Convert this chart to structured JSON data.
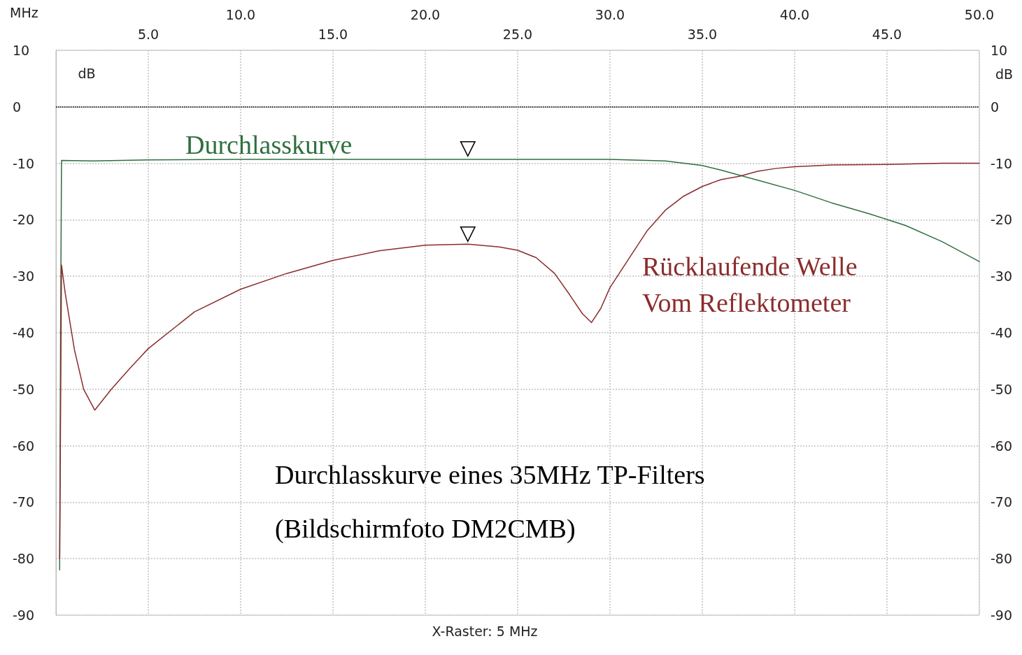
{
  "chart_data": {
    "type": "line",
    "xlabel": "MHz",
    "ylabel": "dB",
    "y2label": "dB",
    "xlim": [
      0,
      50
    ],
    "xticks": [
      {
        "value": 5,
        "label": "5.0"
      },
      {
        "value": 15,
        "label": "15.0"
      },
      {
        "value": 25,
        "label": "25.0"
      },
      {
        "value": 35,
        "label": "35.0"
      },
      {
        "value": 45,
        "label": "45.0"
      }
    ],
    "x2lim": [
      0,
      50
    ],
    "x2ticks": [
      {
        "value": 10,
        "label": "10.0"
      },
      {
        "value": 20,
        "label": "20.0"
      },
      {
        "value": 30,
        "label": "30.0"
      },
      {
        "value": 40,
        "label": "40.0"
      },
      {
        "value": 50,
        "label": "50.0"
      }
    ],
    "ylim": [
      -90,
      10
    ],
    "yticks": [
      10,
      0,
      -10,
      -20,
      -30,
      -40,
      -50,
      -60,
      -70,
      -80,
      -90
    ],
    "y2lim": [
      -90,
      10
    ],
    "y2ticks": [
      10,
      0,
      -10,
      -20,
      -30,
      -40,
      -50,
      -60,
      -70,
      -80,
      -90
    ],
    "grid": true,
    "legend": false,
    "marker": "none",
    "line_style": "solid",
    "ref_lines": [
      {
        "axis": "y",
        "value": 0,
        "label": null,
        "color": "#000000",
        "line_style": "dotted"
      }
    ],
    "series": [
      {
        "name": "Durchlasskurve",
        "color": "#2f6f3f",
        "x": [
          0.2,
          0.25,
          0.3,
          2,
          5,
          10,
          15,
          20,
          22.3,
          25,
          30,
          33,
          35,
          36,
          38,
          40,
          42,
          44,
          46,
          48,
          50
        ],
        "values": [
          -82,
          -40,
          -9.5,
          -9.6,
          -9.4,
          -9.3,
          -9.3,
          -9.3,
          -9.3,
          -9.3,
          -9.3,
          -9.6,
          -10.4,
          -11.2,
          -13,
          -14.8,
          -17,
          -18.9,
          -21,
          -23.9,
          -27.4
        ]
      },
      {
        "name": "Rücklaufende Welle Vom Reflektometer",
        "color": "#8b2c2c",
        "x": [
          0.2,
          0.3,
          0.5,
          1,
          1.5,
          2.1,
          3,
          4,
          5,
          7.5,
          10,
          12.5,
          15,
          17.5,
          20,
          22.3,
          24,
          25,
          26,
          27,
          27.8,
          28.5,
          29,
          29.5,
          30,
          31,
          32,
          33,
          34,
          35,
          36,
          37,
          38,
          39,
          40,
          42,
          45,
          48,
          50
        ],
        "values": [
          -80,
          -28,
          -33,
          -43,
          -50,
          -53.7,
          -50,
          -46.3,
          -42.8,
          -36.3,
          -32.3,
          -29.5,
          -27.2,
          -25.5,
          -24.5,
          -24.3,
          -24.8,
          -25.4,
          -26.7,
          -29.5,
          -33.2,
          -36.6,
          -38.2,
          -35.7,
          -32,
          -27,
          -22,
          -18.3,
          -15.8,
          -14.1,
          -12.9,
          -12.3,
          -11.4,
          -10.9,
          -10.6,
          -10.3,
          -10.2,
          -10,
          -10
        ]
      }
    ],
    "annotations": [
      {
        "text": "▽",
        "x": 22.3,
        "y": -9.3
      },
      {
        "text": "▽",
        "x": 22.3,
        "y": -24.3
      },
      "Durchlasskurve eines 35MHz TP-Filters",
      "(Bildschirmfoto DM2CMB)",
      "X-Raster: 5 MHz"
    ]
  }
}
